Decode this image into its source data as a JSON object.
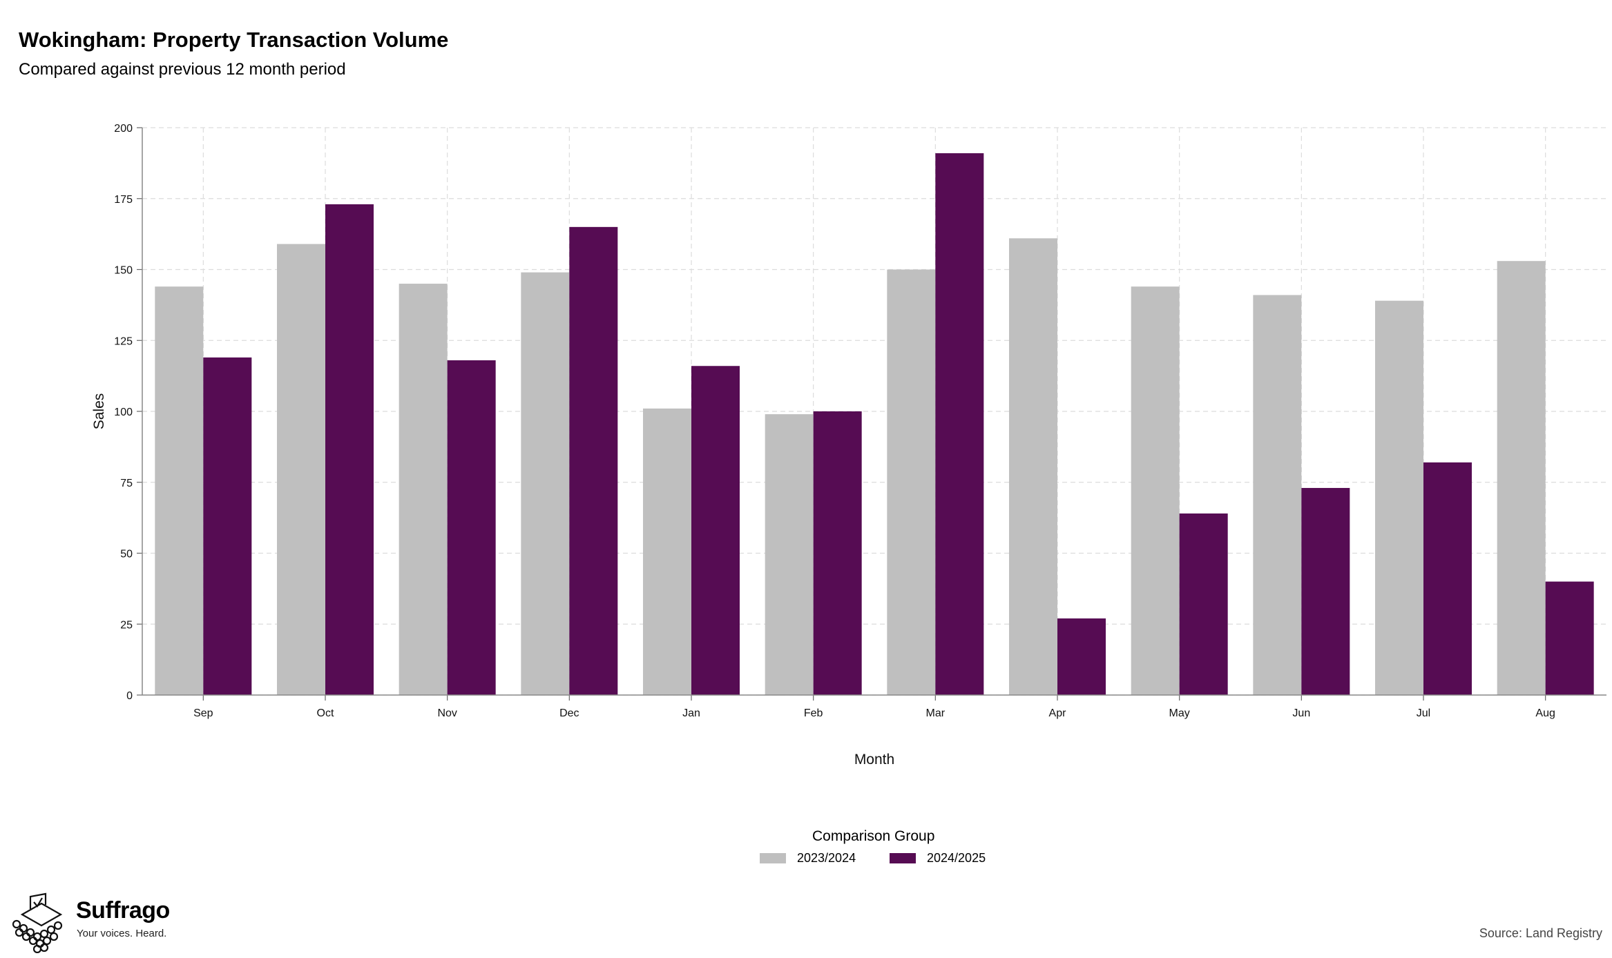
{
  "header": {
    "title": "Wokingham: Property Transaction Volume",
    "subtitle": "Compared against previous 12 month period"
  },
  "legend": {
    "title": "Comparison Group",
    "items": [
      {
        "label": "2023/2024",
        "color": "#bfbfbf"
      },
      {
        "label": "2024/2025",
        "color": "#560c53"
      }
    ]
  },
  "footer": {
    "brand": "Suffrago",
    "tagline": "Your voices. Heard.",
    "source": "Source: Land Registry"
  },
  "chart_data": {
    "type": "bar",
    "title": "Wokingham: Property Transaction Volume",
    "subtitle": "Compared against previous 12 month period",
    "xlabel": "Month",
    "ylabel": "Sales",
    "ylim": [
      0,
      200
    ],
    "yticks": [
      0,
      25,
      50,
      75,
      100,
      125,
      150,
      175,
      200
    ],
    "grid": true,
    "legend_position": "bottom",
    "categories": [
      "Sep",
      "Oct",
      "Nov",
      "Dec",
      "Jan",
      "Feb",
      "Mar",
      "Apr",
      "May",
      "Jun",
      "Jul",
      "Aug"
    ],
    "series": [
      {
        "name": "2023/2024",
        "color": "#bfbfbf",
        "values": [
          144,
          159,
          145,
          149,
          101,
          99,
          150,
          161,
          144,
          141,
          139,
          153
        ]
      },
      {
        "name": "2024/2025",
        "color": "#560c53",
        "values": [
          119,
          173,
          118,
          165,
          116,
          100,
          191,
          27,
          64,
          73,
          82,
          40
        ]
      }
    ]
  }
}
